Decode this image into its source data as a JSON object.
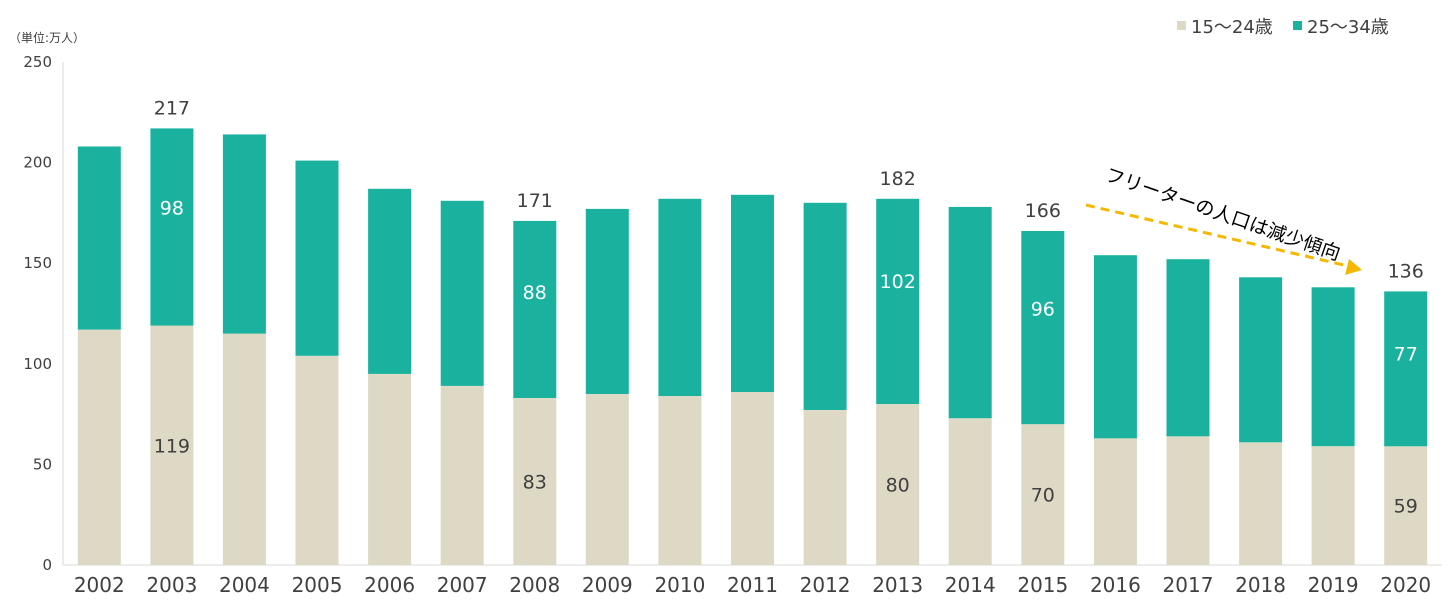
{
  "chart_data": {
    "type": "bar",
    "stacked": true,
    "unit_label": "（単位:万人）",
    "categories": [
      "2002",
      "2003",
      "2004",
      "2005",
      "2006",
      "2007",
      "2008",
      "2009",
      "2010",
      "2011",
      "2012",
      "2013",
      "2014",
      "2015",
      "2016",
      "2017",
      "2018",
      "2019",
      "2020"
    ],
    "series": [
      {
        "name": "15～24歳",
        "color": "#ddd9c4",
        "values": [
          117,
          119,
          115,
          104,
          95,
          89,
          83,
          85,
          84,
          86,
          77,
          80,
          73,
          70,
          63,
          64,
          61,
          59,
          59
        ]
      },
      {
        "name": "25～34歳",
        "color": "#1ab29f",
        "values": [
          91,
          98,
          99,
          97,
          92,
          92,
          88,
          92,
          98,
          98,
          103,
          102,
          105,
          96,
          91,
          88,
          82,
          79,
          77
        ]
      }
    ],
    "ylim": [
      0,
      250
    ],
    "yticks": [
      0,
      50,
      100,
      150,
      200,
      250
    ],
    "grid": false,
    "legend_position": "top-right",
    "total_labels": [
      {
        "category": "2003",
        "text": "217"
      },
      {
        "category": "2008",
        "text": "171"
      },
      {
        "category": "2013",
        "text": "182"
      },
      {
        "category": "2015",
        "text": "166"
      },
      {
        "category": "2020",
        "text": "136"
      }
    ],
    "segment_labels": [
      {
        "category": "2003",
        "series": 0,
        "text": "119"
      },
      {
        "category": "2003",
        "series": 1,
        "text": "98"
      },
      {
        "category": "2008",
        "series": 0,
        "text": "83"
      },
      {
        "category": "2008",
        "series": 1,
        "text": "88"
      },
      {
        "category": "2013",
        "series": 0,
        "text": "80"
      },
      {
        "category": "2013",
        "series": 1,
        "text": "102"
      },
      {
        "category": "2015",
        "series": 0,
        "text": "70"
      },
      {
        "category": "2015",
        "series": 1,
        "text": "96"
      },
      {
        "category": "2020",
        "series": 0,
        "text": "59"
      },
      {
        "category": "2020",
        "series": 1,
        "text": "77"
      }
    ],
    "annotation": {
      "text": "フリーターの人口は減少傾向",
      "arrow_color": "#f5b800"
    }
  }
}
